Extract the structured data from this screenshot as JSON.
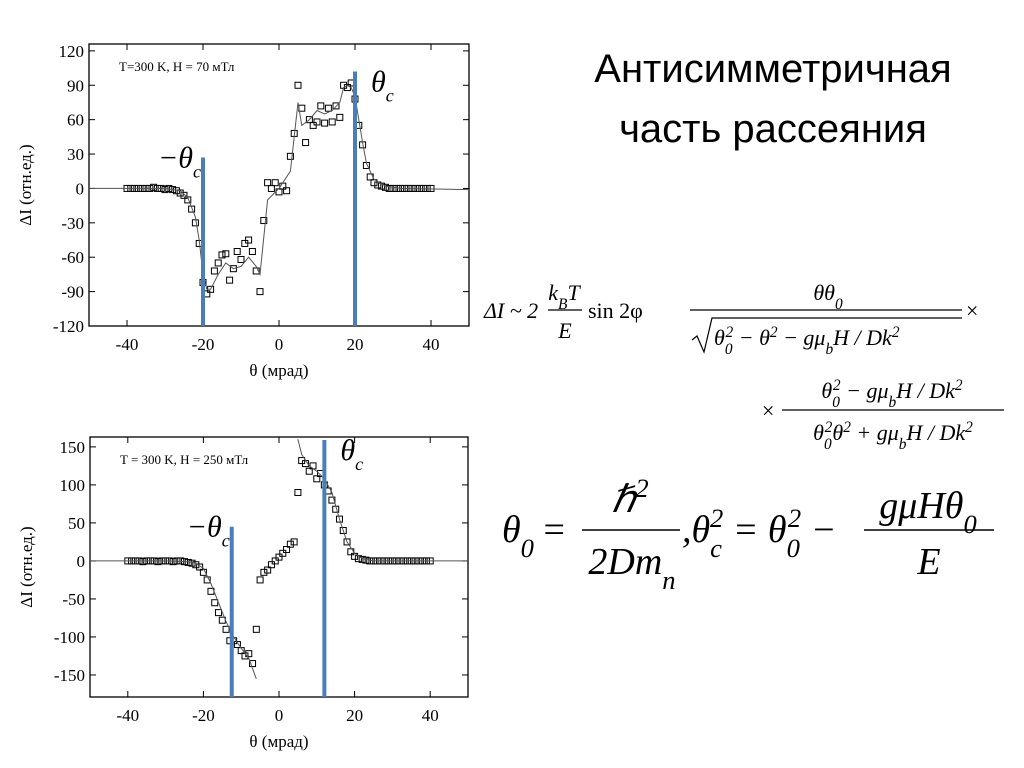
{
  "slide": {
    "title_line_1": "Антисимметричная",
    "title_line_2": "часть рассеяния"
  },
  "formula_1": {
    "lhs": "ΔI ~ 2",
    "frac_a": {
      "num": [
        "k",
        "B",
        "T"
      ],
      "den": [
        "E"
      ]
    },
    "mid": "sin 2φ",
    "frac_b": {
      "num": [
        "θθ",
        "0"
      ],
      "den": [
        "θ",
        "0",
        "2",
        " − θ",
        "2",
        " − gμ",
        "b",
        "H / Dk",
        "2"
      ]
    },
    "times": "×"
  },
  "formula_2": {
    "times": "×",
    "frac": {
      "num": [
        "θ",
        "0",
        "2",
        " − gμ",
        "b",
        "H / Dk",
        "2"
      ],
      "den": [
        "θ",
        "0",
        "2",
        "θ",
        "2",
        " + gμ",
        "b",
        "H / Dk",
        "2"
      ]
    }
  },
  "formula_3": {
    "lhs": [
      "θ",
      "0",
      " ="
    ],
    "frac_a": {
      "num": [
        "ℏ",
        "2"
      ],
      "den": [
        "2Dm",
        "n"
      ]
    },
    "mid": [
      ",θ",
      "c",
      "2",
      " = θ",
      "0",
      "2",
      " −"
    ],
    "frac_b": {
      "num": [
        "gμHθ",
        "0"
      ],
      "den": [
        "E"
      ]
    }
  },
  "chart_data": [
    {
      "type": "scatter",
      "annotation": "T=300 K, H = 70 мТл",
      "x_label": "θ (мрад)",
      "y_label": "ΔI (отн.ед.)",
      "xlim": [
        -50,
        50
      ],
      "ylim": [
        -120,
        126
      ],
      "xticks": [
        -40,
        -20,
        0,
        20,
        40
      ],
      "yticks": [
        -120,
        -90,
        -60,
        -30,
        0,
        30,
        60,
        90,
        120
      ],
      "vlines": [
        {
          "x": -20,
          "ytop": 27,
          "label": [
            "−θ",
            "c"
          ]
        },
        {
          "x": 20,
          "ytop": 102,
          "label": [
            "θ",
            "c"
          ]
        }
      ],
      "vline_color": "#4a7ebb",
      "series": [
        {
          "marker": "square",
          "color": "#000000",
          "x": [
            -40,
            -39,
            -38,
            -37,
            -36,
            -35,
            -34,
            -33,
            -32,
            -31,
            -30,
            -29,
            -28,
            -27,
            -26,
            -25,
            -24,
            -23,
            -22,
            -21,
            -20,
            -19,
            -18,
            -17,
            -16,
            -15,
            -14,
            -13,
            -12,
            -11,
            -10,
            -9,
            -8,
            -7,
            -6,
            -5,
            -4,
            -3,
            -2,
            -1,
            0,
            1,
            2,
            3,
            4,
            5,
            6,
            7,
            8,
            9,
            10,
            11,
            12,
            13,
            14,
            15,
            16,
            17,
            18,
            19,
            20,
            21,
            22,
            23,
            24,
            25,
            26,
            27,
            28,
            29,
            30,
            31,
            32,
            33,
            34,
            35,
            36,
            37,
            38,
            39,
            40
          ],
          "values": [
            0,
            0,
            0,
            0,
            0,
            0,
            0,
            1,
            0,
            0,
            -1,
            0,
            -1,
            -2,
            -4,
            -6,
            -10,
            -18,
            -30,
            -48,
            -82,
            -92,
            -88,
            -72,
            -65,
            -58,
            -57,
            -80,
            -70,
            -55,
            -62,
            -48,
            -45,
            -55,
            -72,
            -90,
            -28,
            5,
            0,
            5,
            -3,
            2,
            -2,
            28,
            48,
            90,
            70,
            40,
            60,
            55,
            58,
            72,
            57,
            70,
            58,
            72,
            62,
            90,
            88,
            92,
            78,
            55,
            38,
            20,
            10,
            5,
            3,
            2,
            1,
            0,
            0,
            0,
            0,
            0,
            0,
            0,
            0,
            0,
            0,
            0,
            0
          ]
        },
        {
          "marker": "line",
          "color": "#555555",
          "x": [
            -50,
            -30,
            -26,
            -24,
            -22,
            -21,
            -20,
            -19,
            -18,
            -16,
            -14,
            -12,
            -10,
            -8,
            -6,
            -5,
            -3,
            0,
            3,
            5,
            6,
            8,
            10,
            12,
            14,
            16,
            17,
            18,
            19,
            20,
            21,
            22,
            23,
            25,
            28,
            32,
            50
          ],
          "values": [
            0,
            0,
            -2,
            -8,
            -25,
            -45,
            -75,
            -88,
            -88,
            -75,
            -65,
            -70,
            -68,
            -60,
            -68,
            -75,
            -10,
            0,
            15,
            75,
            55,
            60,
            68,
            65,
            68,
            75,
            88,
            90,
            88,
            80,
            60,
            40,
            22,
            8,
            2,
            0,
            -1
          ]
        }
      ]
    },
    {
      "type": "scatter",
      "annotation": "T = 300 K, H = 250 мТл",
      "x_label": "θ (мрад)",
      "y_label": "ΔI (отн.ед.)",
      "xlim": [
        -50,
        50
      ],
      "ylim": [
        -179,
        163
      ],
      "xticks": [
        -40,
        -20,
        0,
        20,
        40
      ],
      "yticks": [
        -150,
        -100,
        -50,
        0,
        50,
        100,
        150
      ],
      "vlines": [
        {
          "x": -12.5,
          "ytop": 45,
          "label": [
            "−θ",
            "c"
          ]
        },
        {
          "x": 12,
          "ytop": 159,
          "label": [
            "θ",
            "c"
          ]
        }
      ],
      "vline_color": "#4a7ebb",
      "series": [
        {
          "marker": "square",
          "color": "#000000",
          "x": [
            -40,
            -39,
            -38,
            -37,
            -36,
            -35,
            -34,
            -33,
            -32,
            -31,
            -30,
            -29,
            -28,
            -27,
            -26,
            -25,
            -24,
            -23,
            -22,
            -21,
            -20,
            -19,
            -18,
            -17,
            -16,
            -15,
            -14,
            -13,
            -12,
            -11,
            -10,
            -9,
            -8,
            -7,
            -6,
            -5,
            -4,
            -3,
            -2,
            -1,
            0,
            1,
            2,
            3,
            4,
            5,
            6,
            7,
            8,
            9,
            10,
            11,
            12,
            13,
            14,
            15,
            16,
            17,
            18,
            19,
            20,
            21,
            22,
            23,
            24,
            25,
            26,
            27,
            28,
            29,
            30,
            31,
            32,
            33,
            34,
            35,
            36,
            37,
            38,
            39,
            40
          ],
          "values": [
            0,
            0,
            0,
            0,
            -1,
            0,
            0,
            0,
            -1,
            0,
            0,
            0,
            -1,
            0,
            0,
            -1,
            -2,
            -3,
            -5,
            -8,
            -15,
            -25,
            -40,
            -55,
            -68,
            -78,
            -90,
            -105,
            -105,
            -110,
            -118,
            -125,
            -122,
            -135,
            -90,
            -25,
            -15,
            -12,
            -5,
            0,
            5,
            10,
            15,
            22,
            25,
            90,
            132,
            128,
            118,
            125,
            108,
            115,
            100,
            92,
            80,
            68,
            55,
            40,
            25,
            12,
            6,
            3,
            2,
            1,
            0,
            0,
            0,
            0,
            0,
            0,
            0,
            0,
            0,
            0,
            0,
            0,
            0,
            0,
            0,
            0,
            0
          ]
        },
        {
          "marker": "line",
          "color": "#555555",
          "x": [
            -50,
            -30,
            -24,
            -22,
            -20,
            -18,
            -16,
            -14,
            -12,
            -10,
            -8,
            -6,
            0,
            5,
            6,
            8,
            10,
            12,
            14,
            16,
            18,
            20,
            22,
            25,
            50
          ],
          "values": [
            0,
            0,
            -1,
            -3,
            -10,
            -30,
            -55,
            -80,
            -100,
            -115,
            -128,
            -155,
            null,
            160,
            140,
            125,
            118,
            108,
            90,
            55,
            25,
            10,
            3,
            0,
            0
          ]
        }
      ]
    }
  ]
}
